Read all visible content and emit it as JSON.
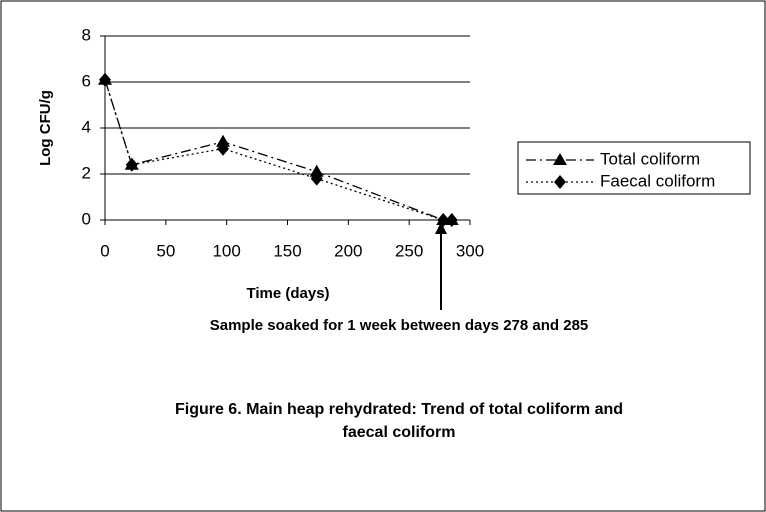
{
  "chart_data": {
    "type": "line",
    "caption": [
      "Figure 6. Main heap rehydrated: Trend of total coliform and",
      "faecal coliform"
    ],
    "x_label": "Time (days)",
    "y_label": "Log CFU/g",
    "annotation": "Sample soaked for 1 week between days 278 and 285",
    "x": [
      0,
      22,
      97,
      174,
      278,
      285
    ],
    "series": [
      {
        "name": "Total coliform",
        "color": "#000000",
        "values": [
          6.1,
          2.4,
          3.4,
          2.1,
          0,
          0
        ]
      },
      {
        "name": "Faecal coliform",
        "color": "#000000",
        "values": [
          6.1,
          2.4,
          3.1,
          1.8,
          0,
          0
        ]
      }
    ],
    "xlim": [
      0,
      300
    ],
    "xticks": [
      0,
      50,
      100,
      150,
      200,
      250,
      300
    ],
    "ylim": [
      0,
      8
    ],
    "yticks": [
      0,
      2,
      4,
      6,
      8
    ],
    "grid": true,
    "legend": "right"
  }
}
